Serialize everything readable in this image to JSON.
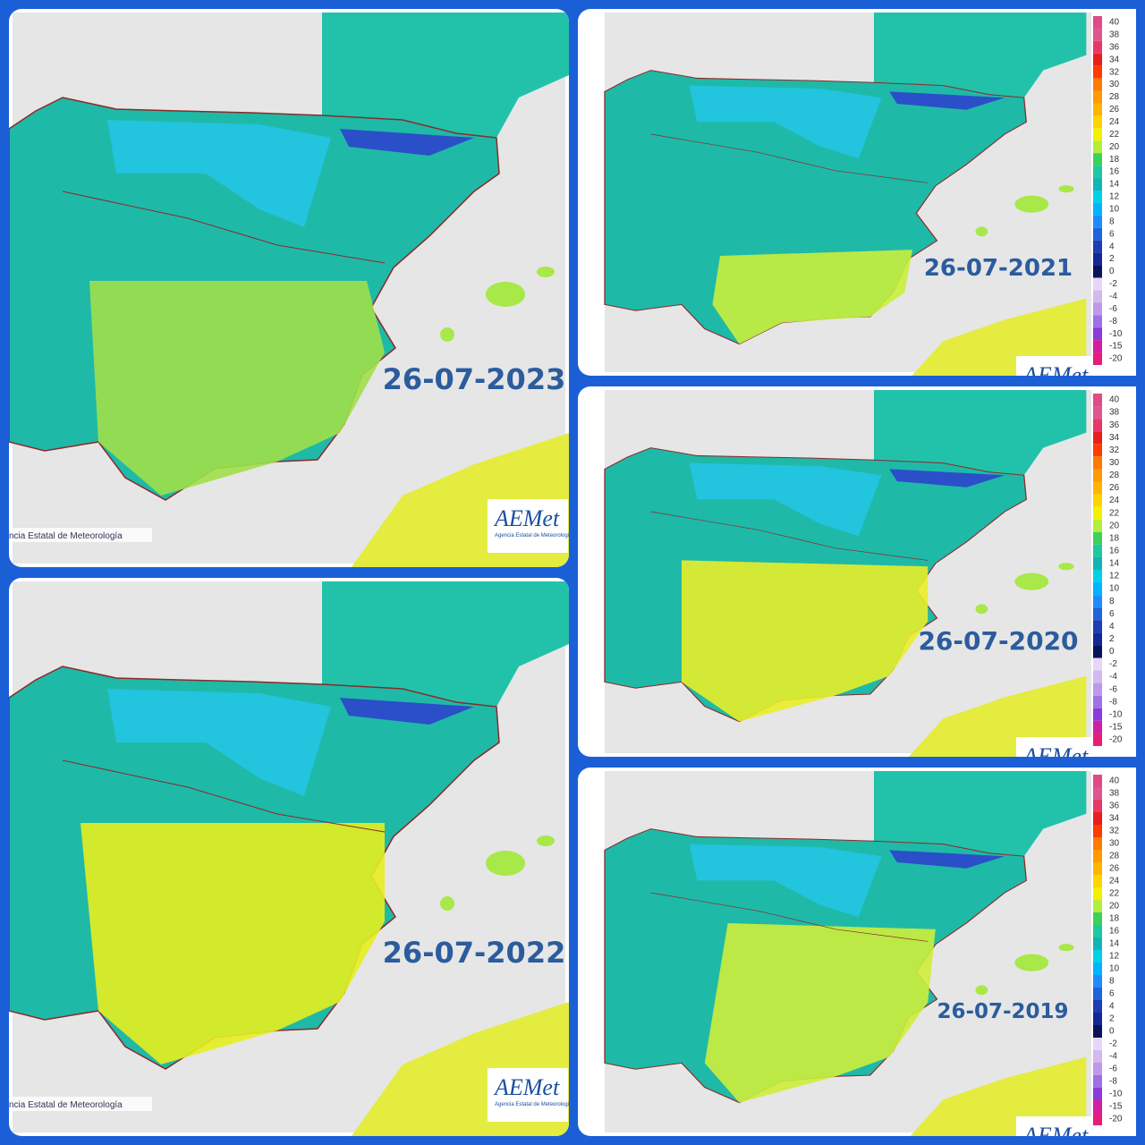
{
  "panels": [
    {
      "date": "26-07-2023",
      "source": "ncia Estatal de Meteorología",
      "logo": "AEMet",
      "logo_sub": "Agencia Estatal de Meteorología"
    },
    {
      "date": "26-07-2022",
      "source": "ncia Estatal de Meteorología",
      "logo": "AEMet",
      "logo_sub": "Agencia Estatal de Meteorología"
    },
    {
      "date": "26-07-2021",
      "logo": "AEMet"
    },
    {
      "date": "26-07-2020",
      "logo": "AEMet"
    },
    {
      "date": "26-07-2019",
      "logo": "AEMet"
    }
  ],
  "legend": {
    "labels": [
      40,
      38,
      36,
      34,
      32,
      30,
      28,
      26,
      24,
      22,
      20,
      18,
      16,
      14,
      12,
      10,
      8,
      6,
      4,
      2,
      0,
      -2,
      -4,
      -6,
      -8,
      -10,
      -15,
      -20
    ],
    "colors": [
      "#e04a86",
      "#e0568e",
      "#e8386a",
      "#e81e1e",
      "#ff3c00",
      "#ff7a00",
      "#ff9a00",
      "#ffb400",
      "#ffd400",
      "#f2f200",
      "#b4ee3c",
      "#3cd25a",
      "#1ec8a0",
      "#14b4b4",
      "#00d2e6",
      "#00b4ff",
      "#1e8cff",
      "#1e64dc",
      "#1e3cb4",
      "#142896",
      "#0a145a",
      "#e8d6f6",
      "#d4b8f0",
      "#be98ea",
      "#a070e6",
      "#8a3cdc",
      "#d21ea0",
      "#e61e78"
    ]
  }
}
